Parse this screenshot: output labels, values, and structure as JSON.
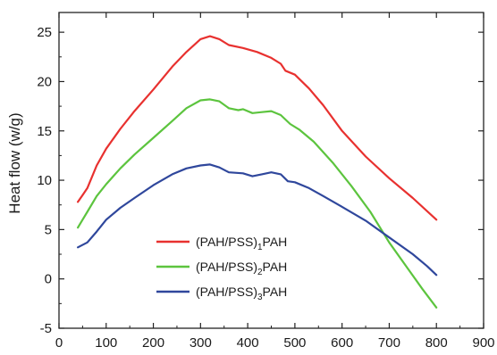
{
  "chart_data": {
    "type": "line",
    "title": "",
    "xlabel": "",
    "ylabel": "Heat flow (w/g)",
    "xlim": [
      0,
      900
    ],
    "ylim": [
      -5,
      27
    ],
    "xticks": [
      0,
      100,
      200,
      300,
      400,
      500,
      600,
      700,
      800,
      900
    ],
    "yticks": [
      -5,
      0,
      5,
      10,
      15,
      20,
      25
    ],
    "grid": false,
    "legend_position": "lower-left",
    "series": [
      {
        "name_parts": [
          "(PAH/PSS)",
          "1",
          "PAH"
        ],
        "color": "#e8312f",
        "points": [
          [
            40,
            7.8
          ],
          [
            50,
            8.5
          ],
          [
            60,
            9.2
          ],
          [
            80,
            11.5
          ],
          [
            100,
            13.2
          ],
          [
            130,
            15.2
          ],
          [
            160,
            17.0
          ],
          [
            200,
            19.2
          ],
          [
            240,
            21.5
          ],
          [
            270,
            23.0
          ],
          [
            300,
            24.3
          ],
          [
            320,
            24.6
          ],
          [
            340,
            24.3
          ],
          [
            360,
            23.7
          ],
          [
            390,
            23.4
          ],
          [
            420,
            23.0
          ],
          [
            450,
            22.4
          ],
          [
            470,
            21.8
          ],
          [
            480,
            21.1
          ],
          [
            500,
            20.7
          ],
          [
            530,
            19.3
          ],
          [
            560,
            17.6
          ],
          [
            600,
            15.0
          ],
          [
            650,
            12.4
          ],
          [
            700,
            10.2
          ],
          [
            750,
            8.2
          ],
          [
            800,
            6.0
          ]
        ]
      },
      {
        "name_parts": [
          "(PAH/PSS)",
          "2",
          "PAH"
        ],
        "color": "#5cc43e",
        "points": [
          [
            40,
            5.2
          ],
          [
            50,
            6.0
          ],
          [
            60,
            6.8
          ],
          [
            80,
            8.4
          ],
          [
            100,
            9.6
          ],
          [
            130,
            11.2
          ],
          [
            160,
            12.6
          ],
          [
            200,
            14.3
          ],
          [
            240,
            16.0
          ],
          [
            270,
            17.3
          ],
          [
            300,
            18.1
          ],
          [
            320,
            18.2
          ],
          [
            340,
            18.0
          ],
          [
            360,
            17.3
          ],
          [
            380,
            17.1
          ],
          [
            390,
            17.2
          ],
          [
            410,
            16.8
          ],
          [
            430,
            16.9
          ],
          [
            450,
            17.0
          ],
          [
            470,
            16.6
          ],
          [
            490,
            15.7
          ],
          [
            510,
            15.1
          ],
          [
            540,
            13.9
          ],
          [
            580,
            11.8
          ],
          [
            620,
            9.4
          ],
          [
            660,
            6.8
          ],
          [
            700,
            3.7
          ],
          [
            740,
            1.0
          ],
          [
            770,
            -1.0
          ],
          [
            800,
            -2.9
          ]
        ]
      },
      {
        "name_parts": [
          "(PAH/PSS)",
          "3",
          "PAH"
        ],
        "color": "#2f479c",
        "points": [
          [
            40,
            3.2
          ],
          [
            60,
            3.7
          ],
          [
            80,
            4.8
          ],
          [
            100,
            6.0
          ],
          [
            130,
            7.2
          ],
          [
            160,
            8.2
          ],
          [
            200,
            9.5
          ],
          [
            240,
            10.6
          ],
          [
            270,
            11.2
          ],
          [
            300,
            11.5
          ],
          [
            320,
            11.6
          ],
          [
            340,
            11.3
          ],
          [
            360,
            10.8
          ],
          [
            390,
            10.7
          ],
          [
            410,
            10.4
          ],
          [
            430,
            10.6
          ],
          [
            450,
            10.8
          ],
          [
            470,
            10.6
          ],
          [
            485,
            9.9
          ],
          [
            500,
            9.8
          ],
          [
            530,
            9.2
          ],
          [
            560,
            8.4
          ],
          [
            600,
            7.3
          ],
          [
            650,
            5.9
          ],
          [
            700,
            4.2
          ],
          [
            750,
            2.5
          ],
          [
            780,
            1.3
          ],
          [
            800,
            0.4
          ]
        ]
      }
    ]
  }
}
